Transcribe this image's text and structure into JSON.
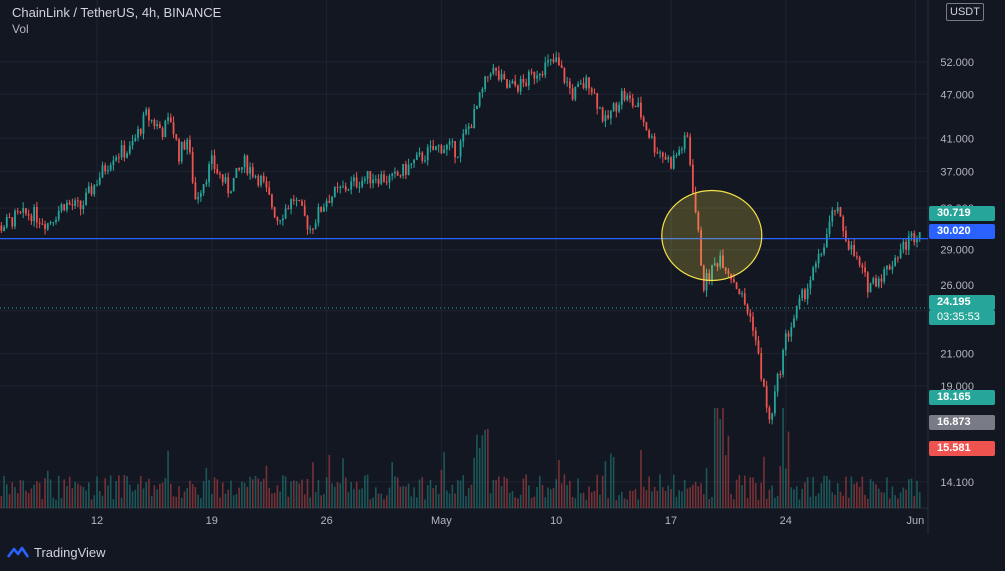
{
  "header": {
    "symbol": "ChainLink / TetherUS, 4h, BINANCE",
    "volume_label": "Vol",
    "currency_badge": "USDT"
  },
  "footer": {
    "brand": "TradingView",
    "logo_icon": "tradingview-logo-icon"
  },
  "colors": {
    "background": "#131722",
    "grid": "#1f2330",
    "up": "#26a69a",
    "down": "#ef5350",
    "horizontal_line": "#2962ff",
    "dotted_line": "#26a69a",
    "circle": "#f7e24a",
    "text": "#b2b5be"
  },
  "price_tags": {
    "current_price": "30.719",
    "line_price": "30.020",
    "dotted_price": "24.195",
    "countdown": "03:35:53",
    "low_green": "18.165",
    "low_gray": "16.873",
    "low_red": "15.581"
  },
  "chart_data": {
    "type": "candlestick",
    "y_scale": "log",
    "ylim": [
      13,
      63
    ],
    "y_ticks": [
      52,
      47,
      41,
      37,
      33,
      29,
      26,
      24,
      21,
      19,
      14.1
    ],
    "y_tick_labels": [
      "52.000",
      "47.000",
      "41.000",
      "37.000",
      "33.000",
      "29.000",
      "26.000",
      "24.000",
      "21.000",
      "19.000",
      "14.100"
    ],
    "x_tick_labels": [
      "12",
      "19",
      "26",
      "May",
      "10",
      "17",
      "24",
      "Jun"
    ],
    "horizontal_line": 30.02,
    "dotted_line": 24.195,
    "highlight_circle": {
      "x_date": "May 19",
      "price": 30.5
    },
    "close_path": [
      [
        "Apr 5",
        34
      ],
      [
        "Apr 6",
        31
      ],
      [
        "Apr 7",
        32
      ],
      [
        "Apr 8",
        32.5
      ],
      [
        "Apr 9",
        31.5
      ],
      [
        "Apr 10",
        33.5
      ],
      [
        "Apr 11",
        33
      ],
      [
        "Apr 12",
        36
      ],
      [
        "Apr 13",
        39
      ],
      [
        "Apr 14",
        39.5
      ],
      [
        "Apr 15",
        44
      ],
      [
        "Apr 16",
        42
      ],
      [
        "Apr 16.5",
        43.5
      ],
      [
        "Apr 17",
        39
      ],
      [
        "Apr 17.5",
        41
      ],
      [
        "Apr 18",
        34
      ],
      [
        "Apr 19",
        38
      ],
      [
        "Apr 20",
        35
      ],
      [
        "Apr 21",
        38
      ],
      [
        "Apr 22",
        36
      ],
      [
        "Apr 23",
        32
      ],
      [
        "Apr 24",
        34
      ],
      [
        "Apr 25",
        31
      ],
      [
        "Apr 26",
        34
      ],
      [
        "Apr 27",
        35
      ],
      [
        "Apr 28",
        36
      ],
      [
        "Apr 29",
        36.5
      ],
      [
        "Apr 30",
        36
      ],
      [
        "May 1",
        37.5
      ],
      [
        "May 2",
        39
      ],
      [
        "May 3",
        40
      ],
      [
        "May 4",
        39.5
      ],
      [
        "May 5",
        44
      ],
      [
        "May 6",
        51
      ],
      [
        "May 7",
        48
      ],
      [
        "May 8",
        48.5
      ],
      [
        "May 9",
        51
      ],
      [
        "May 10",
        52
      ],
      [
        "May 11",
        47
      ],
      [
        "May 12",
        49
      ],
      [
        "May 13",
        43
      ],
      [
        "May 14",
        47
      ],
      [
        "May 15",
        45
      ],
      [
        "May 16",
        40
      ],
      [
        "May 17",
        38
      ],
      [
        "May 18",
        41
      ],
      [
        "May 19",
        26
      ],
      [
        "May 20",
        28.5
      ],
      [
        "May 21",
        26
      ],
      [
        "May 22",
        23
      ],
      [
        "May 23",
        16.9
      ],
      [
        "May 24",
        22
      ],
      [
        "May 25",
        25
      ],
      [
        "May 26",
        28
      ],
      [
        "May 27",
        33
      ],
      [
        "May 28",
        29
      ],
      [
        "May 29",
        26
      ],
      [
        "May 30",
        27
      ],
      [
        "May 31",
        29
      ],
      [
        "Jun 1",
        30.7
      ]
    ],
    "volume_scale": [
      0,
      1
    ],
    "volume_note": "relative volume bars with spikes around May 19 and May 23"
  }
}
